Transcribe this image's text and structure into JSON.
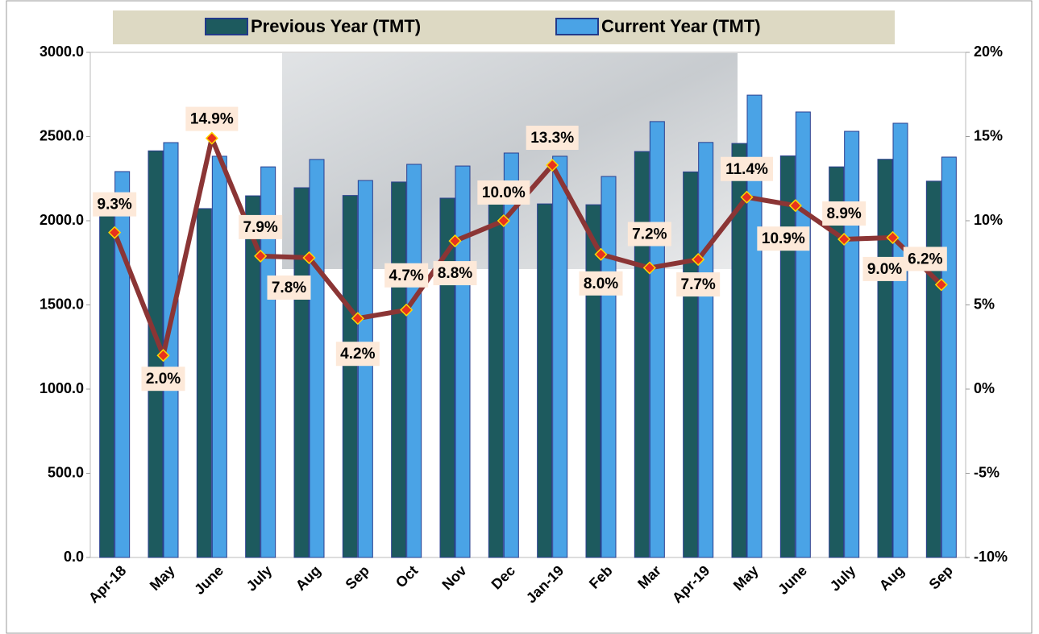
{
  "chart_data": {
    "type": "bar",
    "categories": [
      "Apr-18",
      "May",
      "June",
      "July",
      "Aug",
      "Sep",
      "Oct",
      "Nov",
      "Dec",
      "Jan-19",
      "Feb",
      "Mar",
      "Apr-19",
      "May",
      "June",
      "July",
      "Aug",
      "Sep"
    ],
    "series": [
      {
        "name": "Previous Year (TMT)",
        "color": "#1d5a5e",
        "values": [
          2095,
          2415,
          2072,
          2148,
          2196,
          2150,
          2230,
          2134,
          2182,
          2100,
          2095,
          2411,
          2290,
          2459,
          2385,
          2320,
          2365,
          2235
        ]
      },
      {
        "name": "Current Year (TMT)",
        "color": "#4aa3e6",
        "values": [
          2292,
          2464,
          2383,
          2320,
          2364,
          2239,
          2335,
          2325,
          2402,
          2383,
          2263,
          2589,
          2465,
          2746,
          2646,
          2531,
          2579,
          2378
        ]
      },
      {
        "type": "line",
        "axis": "y2",
        "color": "#8b3535",
        "values": [
          9.3,
          2.0,
          14.9,
          7.9,
          7.8,
          4.2,
          4.7,
          8.8,
          10.0,
          13.3,
          8.0,
          7.2,
          7.7,
          11.4,
          10.9,
          8.9,
          9.0,
          6.2
        ],
        "value_labels": [
          "9.3%",
          "2.0%",
          "14.9%",
          "7.9%",
          "7.8%",
          "4.2%",
          "4.7%",
          "8.8%",
          "10.0%",
          "13.3%",
          "8.0%",
          "7.2%",
          "7.7%",
          "11.4%",
          "10.9%",
          "8.9%",
          "9.0%",
          "6.2%"
        ]
      }
    ],
    "ylim": [
      0,
      3000
    ],
    "yticks": [
      {
        "value": 0,
        "label": "0.0"
      },
      {
        "value": 500,
        "label": "500.0"
      },
      {
        "value": 1000,
        "label": "1000.0"
      },
      {
        "value": 1500,
        "label": "1500.0"
      },
      {
        "value": 2000,
        "label": "2000.0"
      },
      {
        "value": 2500,
        "label": "2500.0"
      },
      {
        "value": 3000,
        "label": "3000.0"
      }
    ],
    "y2lim": [
      -10,
      20
    ],
    "y2ticks": [
      {
        "value": -10,
        "label": "-10%"
      },
      {
        "value": -5,
        "label": "-5%"
      },
      {
        "value": 0,
        "label": "0%"
      },
      {
        "value": 5,
        "label": "5%"
      },
      {
        "value": 10,
        "label": "10%"
      },
      {
        "value": 15,
        "label": "15%"
      },
      {
        "value": 20,
        "label": "20%"
      }
    ],
    "grid": false,
    "legend": "top"
  }
}
